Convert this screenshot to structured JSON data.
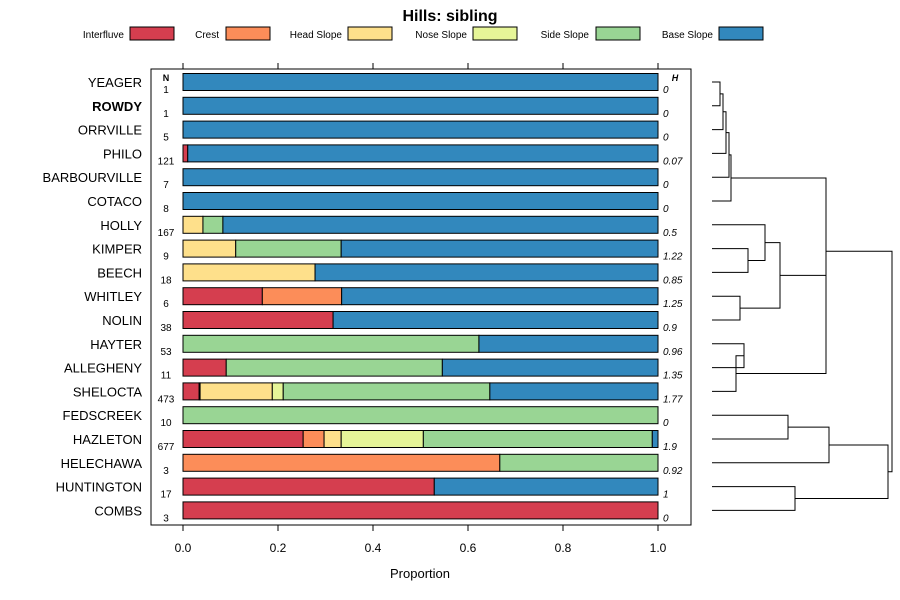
{
  "chart_data": {
    "type": "bar",
    "orientation": "horizontal",
    "stacked": true,
    "title": "Hills: sibling",
    "xlabel": "Proportion",
    "ylabel": "",
    "xlim": [
      0,
      1
    ],
    "x_ticks": [
      "0.0",
      "0.2",
      "0.4",
      "0.6",
      "0.8",
      "1.0"
    ],
    "legend_position": "top",
    "n_header": "N",
    "h_header": "H",
    "highlighted_category": "ROWDY",
    "legend": [
      {
        "name": "Interfluve",
        "color": "#d53e4f"
      },
      {
        "name": "Crest",
        "color": "#fc8d59"
      },
      {
        "name": "Head Slope",
        "color": "#fee08b"
      },
      {
        "name": "Nose Slope",
        "color": "#e6f598"
      },
      {
        "name": "Side Slope",
        "color": "#99d594"
      },
      {
        "name": "Base Slope",
        "color": "#3288bd"
      }
    ],
    "categories": [
      "YEAGER",
      "ROWDY",
      "ORRVILLE",
      "PHILO",
      "BARBOURVILLE",
      "COTACO",
      "HOLLY",
      "KIMPER",
      "BEECH",
      "WHITLEY",
      "NOLIN",
      "HAYTER",
      "ALLEGHENY",
      "SHELOCTA",
      "FEDSCREEK",
      "HAZLETON",
      "HELECHAWA",
      "HUNTINGTON",
      "COMBS"
    ],
    "n": [
      "1",
      "1",
      "5",
      "121",
      "7",
      "8",
      "167",
      "9",
      "18",
      "6",
      "38",
      "53",
      "11",
      "473",
      "10",
      "677",
      "3",
      "17",
      "3"
    ],
    "h": [
      "0",
      "0",
      "0",
      "0.07",
      "0",
      "0",
      "0.5",
      "1.22",
      "0.85",
      "1.25",
      "0.9",
      "0.96",
      "1.35",
      "1.77",
      "0",
      "1.9",
      "0.92",
      "1",
      "0"
    ],
    "series": [
      {
        "name": "Interfluve",
        "values": [
          0,
          0,
          0,
          0.01,
          0,
          0,
          0,
          0,
          0,
          0.167,
          0.316,
          0,
          0.091,
          0.034,
          0,
          0.253,
          0,
          0.529,
          1
        ]
      },
      {
        "name": "Crest",
        "values": [
          0,
          0,
          0,
          0,
          0,
          0,
          0,
          0,
          0,
          0.167,
          0,
          0,
          0,
          0.002,
          0,
          0.044,
          0.667,
          0,
          0
        ]
      },
      {
        "name": "Head Slope",
        "values": [
          0,
          0,
          0,
          0,
          0,
          0,
          0.042,
          0.111,
          0.278,
          0,
          0,
          0,
          0,
          0.152,
          0,
          0.036,
          0,
          0,
          0
        ]
      },
      {
        "name": "Nose Slope",
        "values": [
          0,
          0,
          0,
          0,
          0,
          0,
          0,
          0,
          0,
          0,
          0,
          0,
          0,
          0.023,
          0,
          0.173,
          0,
          0,
          0
        ]
      },
      {
        "name": "Side Slope",
        "values": [
          0,
          0,
          0,
          0,
          0,
          0,
          0.042,
          0.222,
          0,
          0,
          0,
          0.623,
          0.455,
          0.435,
          1,
          0.482,
          0.333,
          0,
          0
        ]
      },
      {
        "name": "Base Slope",
        "values": [
          1,
          1,
          1,
          0.99,
          1,
          1,
          0.916,
          0.667,
          0.722,
          0.666,
          0.684,
          0.377,
          0.454,
          0.354,
          0,
          0.012,
          0,
          0.471,
          0
        ]
      }
    ],
    "dendrogram": "hierarchical clustering of categories"
  }
}
